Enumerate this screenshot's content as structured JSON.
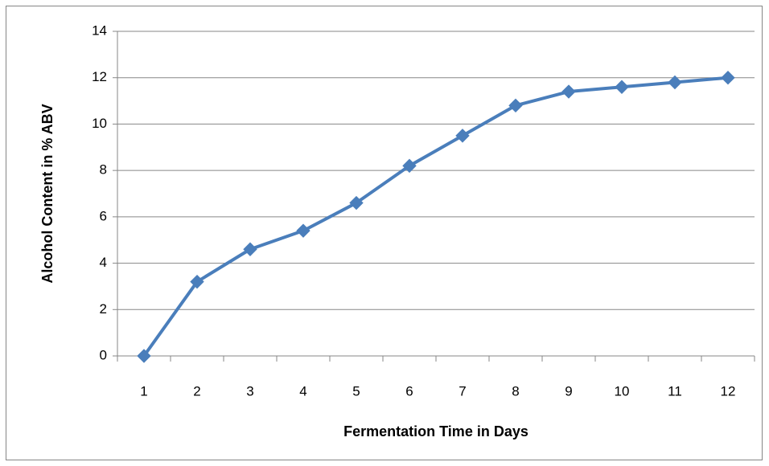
{
  "chart_data": {
    "type": "line",
    "xlabel": "Fermentation Time in Days",
    "ylabel": "Alcohol Content in % ABV",
    "categories": [
      "1",
      "2",
      "3",
      "4",
      "5",
      "6",
      "7",
      "8",
      "9",
      "10",
      "11",
      "12"
    ],
    "series": [
      {
        "color": "#4a7ebb",
        "values": [
          0,
          3.2,
          4.6,
          5.4,
          6.6,
          8.2,
          9.5,
          10.8,
          11.4,
          11.6,
          11.8,
          12.0
        ]
      }
    ],
    "ylim": [
      0,
      14
    ],
    "yticks": [
      0,
      2,
      4,
      6,
      8,
      10,
      12,
      14
    ],
    "grid": true
  }
}
